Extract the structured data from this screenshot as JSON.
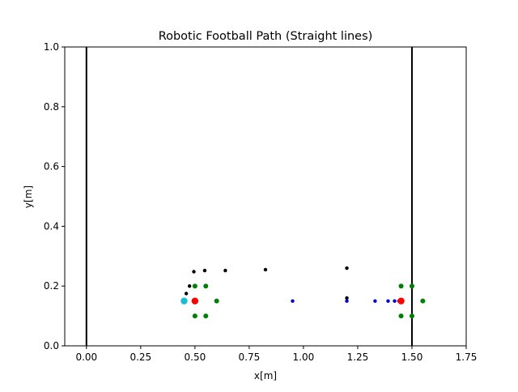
{
  "chart_data": {
    "type": "scatter",
    "title": "Robotic Football Path  (Straight lines)",
    "xlabel": "x[m]",
    "ylabel": "y[m]",
    "xlim": [
      -0.1,
      1.75
    ],
    "ylim": [
      0.0,
      1.0
    ],
    "xticks": [
      0.0,
      0.25,
      0.5,
      0.75,
      1.0,
      1.25,
      1.5,
      1.75
    ],
    "xtick_labels": [
      "0.00",
      "0.25",
      "0.50",
      "0.75",
      "1.00",
      "1.25",
      "1.50",
      "1.75"
    ],
    "yticks": [
      0.0,
      0.2,
      0.4,
      0.6,
      0.8,
      1.0
    ],
    "ytick_labels": [
      "0.0",
      "0.2",
      "0.4",
      "0.6",
      "0.8",
      "1.0"
    ],
    "grid": false,
    "legend": "none",
    "vertical_lines": [
      {
        "x": 0.0,
        "color": "#000000"
      },
      {
        "x": 1.5,
        "color": "#000000"
      }
    ],
    "series": [
      {
        "color": "#000000",
        "marker_size": "small",
        "points": [
          [
            0.46,
            0.175
          ],
          [
            0.475,
            0.2
          ],
          [
            0.495,
            0.248
          ],
          [
            0.545,
            0.252
          ],
          [
            0.64,
            0.252
          ],
          [
            0.825,
            0.255
          ],
          [
            1.2,
            0.26
          ],
          [
            1.2,
            0.16
          ]
        ]
      },
      {
        "color": "#0000cc",
        "marker_size": "small",
        "points": [
          [
            0.95,
            0.15
          ],
          [
            1.2,
            0.15
          ],
          [
            1.33,
            0.15
          ],
          [
            1.39,
            0.15
          ],
          [
            1.42,
            0.15
          ],
          [
            1.44,
            0.15
          ]
        ]
      },
      {
        "color": "#008000",
        "marker_size": "medium",
        "points": [
          [
            0.5,
            0.2
          ],
          [
            0.55,
            0.2
          ],
          [
            0.6,
            0.15
          ],
          [
            0.5,
            0.1
          ],
          [
            0.55,
            0.1
          ],
          [
            1.45,
            0.2
          ],
          [
            1.5,
            0.2
          ],
          [
            1.55,
            0.15
          ],
          [
            1.45,
            0.1
          ],
          [
            1.5,
            0.1
          ]
        ]
      },
      {
        "color": "#17becf",
        "marker_size": "large",
        "points": [
          [
            0.45,
            0.15
          ]
        ]
      },
      {
        "color": "#ff0000",
        "marker_size": "large",
        "points": [
          [
            0.5,
            0.15
          ],
          [
            1.45,
            0.15
          ]
        ]
      }
    ]
  }
}
